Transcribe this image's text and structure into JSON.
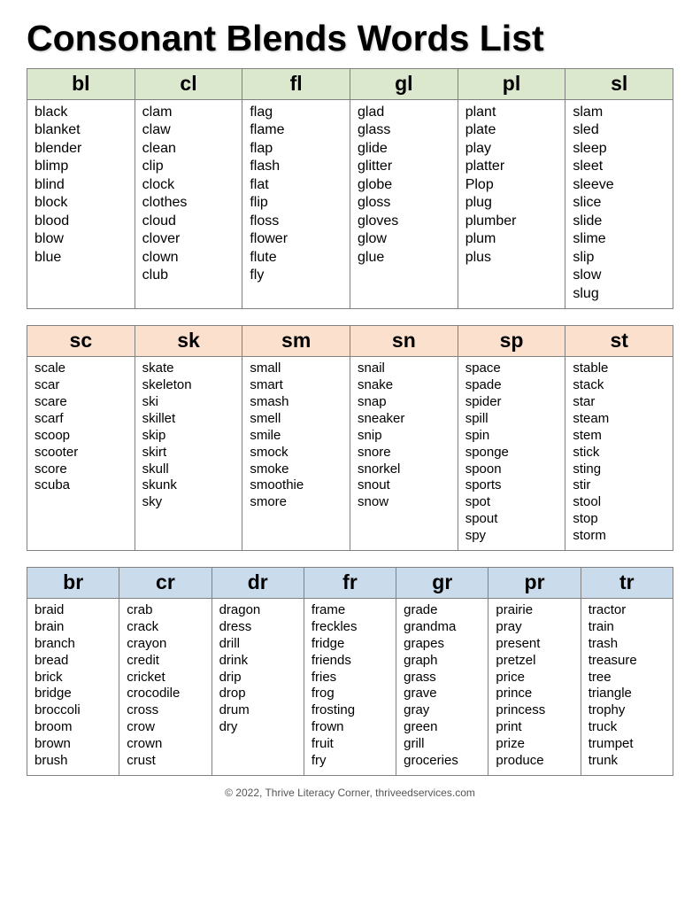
{
  "title": "Consonant Blends Words List",
  "footer": "© 2022, Thrive Literacy Corner, thriveedservices.com",
  "colors": {
    "border": "#808080",
    "band1_header_bg": "#dbe8ce",
    "band2_header_bg": "#fbe0ce",
    "band3_header_bg": "#cadbec",
    "title_shadow": "rgba(0,0,0,0.25)"
  },
  "bands": [
    {
      "header_bg": "#dbe8ce",
      "columns": [
        {
          "key": "bl",
          "words": [
            "black",
            "blanket",
            "blender",
            "blimp",
            "blind",
            "block",
            "blood",
            "blow",
            "blue"
          ]
        },
        {
          "key": "cl",
          "words": [
            "clam",
            "claw",
            "clean",
            "clip",
            "clock",
            "clothes",
            "cloud",
            "clover",
            "clown",
            "club"
          ]
        },
        {
          "key": "fl",
          "words": [
            "flag",
            "flame",
            "flap",
            "flash",
            "flat",
            "flip",
            "floss",
            "flower",
            "flute",
            "fly"
          ]
        },
        {
          "key": "gl",
          "words": [
            "glad",
            "glass",
            "glide",
            "glitter",
            "globe",
            "gloss",
            "gloves",
            "glow",
            "glue"
          ]
        },
        {
          "key": "pl",
          "words": [
            "plant",
            "plate",
            "play",
            "platter",
            "Plop",
            "plug",
            "plumber",
            "plum",
            "plus"
          ]
        },
        {
          "key": "sl",
          "words": [
            "slam",
            "sled",
            "sleep",
            "sleet",
            "sleeve",
            "slice",
            "slide",
            "slime",
            "slip",
            "slow",
            "slug"
          ]
        }
      ]
    },
    {
      "header_bg": "#fbe0ce",
      "columns": [
        {
          "key": "sc",
          "words": [
            "scale",
            "scar",
            "scare",
            "scarf",
            "scoop",
            "scooter",
            "score",
            "scuba"
          ]
        },
        {
          "key": "sk",
          "words": [
            "skate",
            "skeleton",
            "ski",
            "skillet",
            "skip",
            "skirt",
            "skull",
            "skunk",
            "sky"
          ]
        },
        {
          "key": "sm",
          "words": [
            "small",
            "smart",
            "smash",
            "smell",
            "smile",
            "smock",
            "smoke",
            "smoothie",
            "smore"
          ]
        },
        {
          "key": "sn",
          "words": [
            "snail",
            "snake",
            "snap",
            "sneaker",
            "snip",
            "snore",
            "snorkel",
            "snout",
            "snow"
          ]
        },
        {
          "key": "sp",
          "words": [
            "space",
            "spade",
            "spider",
            "spill",
            "spin",
            "sponge",
            "spoon",
            "sports",
            "spot",
            "spout",
            "spy"
          ]
        },
        {
          "key": "st",
          "words": [
            "stable",
            "stack",
            "star",
            "steam",
            "stem",
            "stick",
            "sting",
            "stir",
            "stool",
            "stop",
            "storm"
          ]
        }
      ]
    },
    {
      "header_bg": "#cadbec",
      "columns": [
        {
          "key": "br",
          "words": [
            "braid",
            "brain",
            "branch",
            "bread",
            "brick",
            "bridge",
            "broccoli",
            "broom",
            "brown",
            "brush"
          ]
        },
        {
          "key": "cr",
          "words": [
            "crab",
            "crack",
            "crayon",
            "credit",
            "cricket",
            "crocodile",
            "cross",
            "crow",
            "crown",
            "crust"
          ]
        },
        {
          "key": "dr",
          "words": [
            "dragon",
            "dress",
            "drill",
            "drink",
            "drip",
            "drop",
            "drum",
            "dry"
          ]
        },
        {
          "key": "fr",
          "words": [
            "frame",
            "freckles",
            "fridge",
            "friends",
            "fries",
            "frog",
            "frosting",
            "frown",
            "fruit",
            "fry"
          ]
        },
        {
          "key": "gr",
          "words": [
            "grade",
            "grandma",
            "grapes",
            "graph",
            "grass",
            "grave",
            "gray",
            "green",
            "grill",
            "groceries"
          ]
        },
        {
          "key": "pr",
          "words": [
            "prairie",
            "pray",
            "present",
            "pretzel",
            "price",
            "prince",
            "princess",
            "print",
            "prize",
            "produce"
          ]
        },
        {
          "key": "tr",
          "words": [
            "tractor",
            "train",
            "trash",
            "treasure",
            "tree",
            "triangle",
            "trophy",
            "truck",
            "trumpet",
            "trunk"
          ]
        }
      ]
    }
  ]
}
